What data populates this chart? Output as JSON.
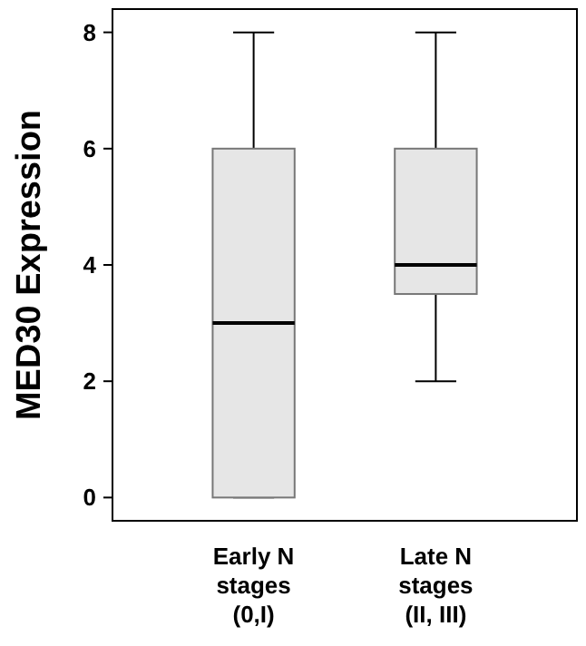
{
  "chart_data": {
    "type": "box",
    "ylabel": "MED30 Expression",
    "categories": [
      "Early N\nstages\n(0,I)",
      "Late N\nstages\n(II, III)"
    ],
    "boxes": [
      {
        "low": 0,
        "q1": 0,
        "median": 3,
        "q3": 6,
        "high": 8
      },
      {
        "low": 2,
        "q1": 3.5,
        "median": 4,
        "q3": 6,
        "high": 8
      }
    ],
    "color": "#e6e6e6",
    "ylim": [
      -0.4,
      8.4
    ],
    "yticks": [
      0,
      2,
      4,
      6,
      8
    ]
  }
}
